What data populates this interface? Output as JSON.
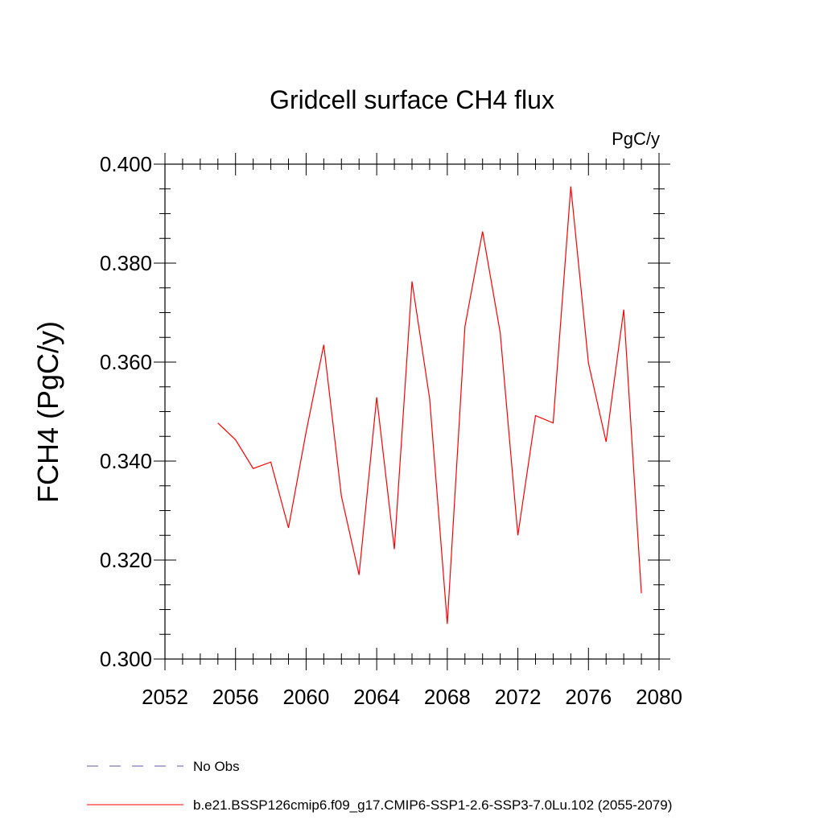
{
  "chart_data": {
    "type": "line",
    "title": "Gridcell surface CH4 flux",
    "units_label": "PgC/y",
    "ylabel": "FCH4  (PgC/y)",
    "xlabel": "",
    "xlim": [
      2052,
      2080
    ],
    "ylim": [
      0.3,
      0.4
    ],
    "x_ticks": [
      "2052",
      "2056",
      "2060",
      "2064",
      "2068",
      "2072",
      "2076",
      "2080"
    ],
    "y_ticks": [
      "0.300",
      "0.320",
      "0.340",
      "0.360",
      "0.380",
      "0.400"
    ],
    "grid": false,
    "legend_placement": "bottom",
    "series": [
      {
        "name": "b.e21.BSSP126cmip6.f09_g17.CMIP6-SSP1-2.6-SSP3-7.0Lu.102 (2055-2079)",
        "color": "#ff0000",
        "x": [
          2055,
          2056,
          2057,
          2058,
          2059,
          2060,
          2061,
          2062,
          2063,
          2064,
          2065,
          2066,
          2067,
          2068,
          2069,
          2070,
          2071,
          2072,
          2073,
          2074,
          2075,
          2076,
          2077,
          2078,
          2079
        ],
        "y": [
          0.3477,
          0.3443,
          0.3385,
          0.3398,
          0.3265,
          0.3459,
          0.3635,
          0.3329,
          0.317,
          0.3529,
          0.3222,
          0.3763,
          0.3526,
          0.3071,
          0.3672,
          0.3864,
          0.3659,
          0.325,
          0.3492,
          0.3477,
          0.3955,
          0.3598,
          0.3439,
          0.3706,
          0.3133
        ]
      }
    ],
    "legend": [
      {
        "label": "No Obs",
        "color": "#6655aa",
        "style": "dashed"
      },
      {
        "label": "b.e21.BSSP126cmip6.f09_g17.CMIP6-SSP1-2.6-SSP3-7.0Lu.102 (2055-2079)",
        "color": "#ff0000",
        "style": "solid"
      }
    ]
  }
}
